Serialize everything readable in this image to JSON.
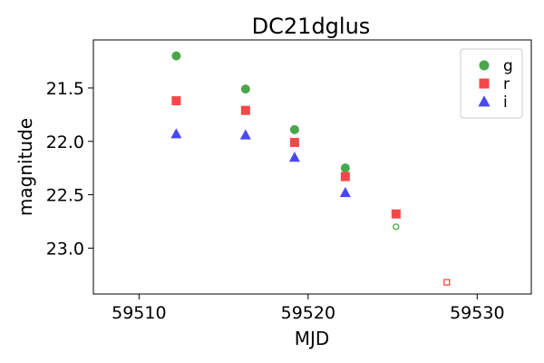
{
  "chart_data": {
    "type": "scatter",
    "title": "DC21dglus",
    "xlabel": "MJD",
    "ylabel": "magnitude",
    "xlim": [
      59507.3,
      59533.2
    ],
    "ylim": [
      23.43,
      21.05
    ],
    "y_inverted": true,
    "grid": false,
    "legend_position": "top-right",
    "xticks": [
      59510,
      59520,
      59530
    ],
    "yticks": [
      21.5,
      22.0,
      22.5,
      23.0
    ],
    "xtick_labels": [
      "59510",
      "59520",
      "59530"
    ],
    "ytick_labels": [
      "21.5",
      "22.0",
      "22.5",
      "23.0"
    ],
    "series": [
      {
        "name": "g",
        "marker": "circle",
        "color": "#4aa64a",
        "points": [
          {
            "x": 59512.2,
            "y": 21.2,
            "detection": true
          },
          {
            "x": 59516.3,
            "y": 21.51,
            "detection": true
          },
          {
            "x": 59519.2,
            "y": 21.89,
            "detection": true
          },
          {
            "x": 59522.2,
            "y": 22.25,
            "detection": true
          },
          {
            "x": 59525.2,
            "y": 22.8,
            "detection": false
          }
        ]
      },
      {
        "name": "r",
        "marker": "square",
        "color": "#f44848",
        "points": [
          {
            "x": 59512.2,
            "y": 21.62,
            "detection": true
          },
          {
            "x": 59516.3,
            "y": 21.71,
            "detection": true
          },
          {
            "x": 59519.2,
            "y": 22.01,
            "detection": true
          },
          {
            "x": 59522.2,
            "y": 22.33,
            "detection": true
          },
          {
            "x": 59525.2,
            "y": 22.68,
            "detection": true
          },
          {
            "x": 59528.2,
            "y": 23.32,
            "detection": false
          }
        ]
      },
      {
        "name": "i",
        "marker": "triangle",
        "color": "#4848f4",
        "points": [
          {
            "x": 59512.2,
            "y": 21.93,
            "detection": true
          },
          {
            "x": 59516.3,
            "y": 21.94,
            "detection": true
          },
          {
            "x": 59519.2,
            "y": 22.15,
            "detection": true
          },
          {
            "x": 59522.2,
            "y": 22.48,
            "detection": true
          }
        ]
      }
    ]
  }
}
